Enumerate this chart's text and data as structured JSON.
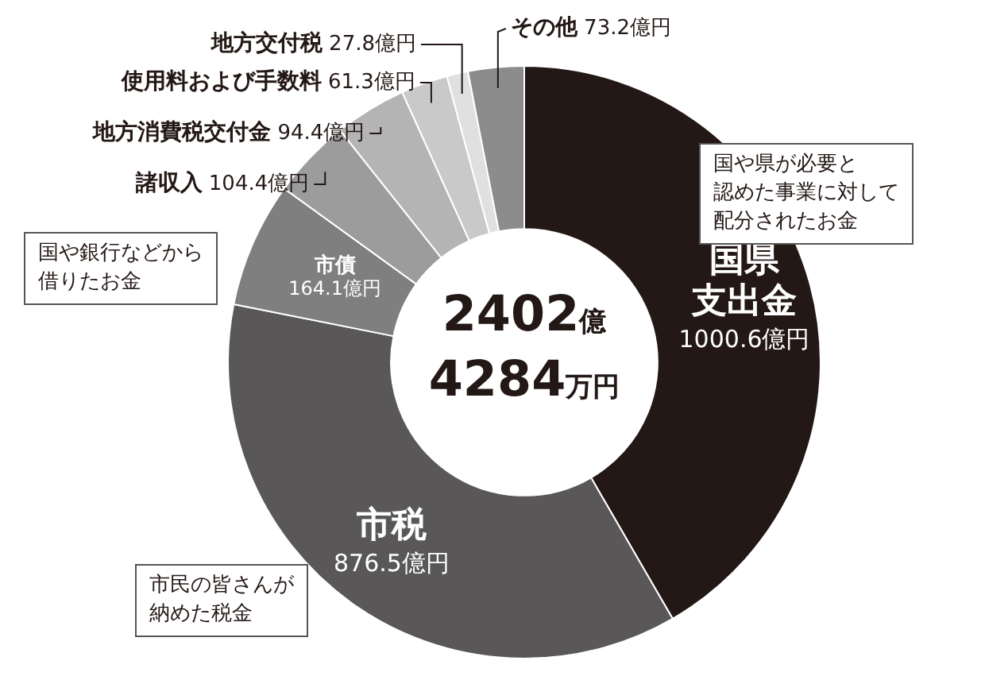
{
  "chart_data": {
    "type": "donut",
    "categories": [
      "国県支出金",
      "市税",
      "市債",
      "諸収入",
      "地方消費税交付金",
      "使用料および手数料",
      "地方交付税",
      "その他"
    ],
    "values": [
      1000.6,
      876.5,
      164.1,
      104.4,
      94.4,
      61.3,
      27.8,
      73.2
    ],
    "value_labels": [
      "1000.6億円",
      "876.5億円",
      "164.1億円",
      "104.4億円",
      "94.4億円",
      "61.3億円",
      "27.8億円",
      "73.2億円"
    ],
    "colors": [
      "#231815",
      "#595757",
      "#7f7f7f",
      "#9c9c9c",
      "#b4b4b4",
      "#c9c9c9",
      "#e0e0e0",
      "#8c8c8c"
    ],
    "annotations": [
      "2402億4284万円",
      "国や県が必要と認めた事業に対して配分されたお金",
      "国や銀行などから借りたお金",
      "市民の皆さんが納めた税金"
    ],
    "legend": false
  }
}
